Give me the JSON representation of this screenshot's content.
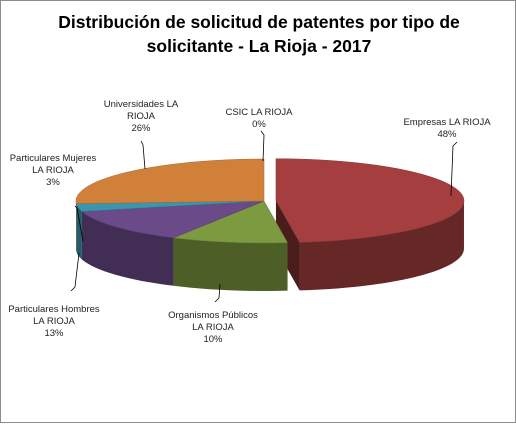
{
  "chart_data": {
    "type": "pie",
    "title_lines": [
      "Distribución de solicitud de patentes por tipo de",
      "solicitante - La Rioja - 2017"
    ],
    "slices": [
      {
        "label": [
          "Empresas LA RIOJA",
          "48%"
        ],
        "value": 48,
        "color": "#a53f3f",
        "exploded": true
      },
      {
        "label": [
          "Organismos Públicos",
          "LA RIOJA",
          "10%"
        ],
        "value": 10,
        "color": "#7c9a3f",
        "exploded": false
      },
      {
        "label": [
          "Particulares Hombres",
          "LA RIOJA",
          "13%"
        ],
        "value": 13,
        "color": "#6a4a88",
        "exploded": false
      },
      {
        "label": [
          "Particulares Mujeres",
          "LA RIOJA",
          "3%"
        ],
        "value": 3,
        "color": "#3a95ad",
        "exploded": false
      },
      {
        "label": [
          "Universidades LA",
          "RIOJA",
          "26%"
        ],
        "value": 26,
        "color": "#d1803a",
        "exploded": false
      },
      {
        "label": [
          "CSIC LA RIOJA",
          "0%"
        ],
        "value": 0,
        "color": "#5b7db8",
        "exploded": false
      }
    ],
    "legend": "none"
  }
}
